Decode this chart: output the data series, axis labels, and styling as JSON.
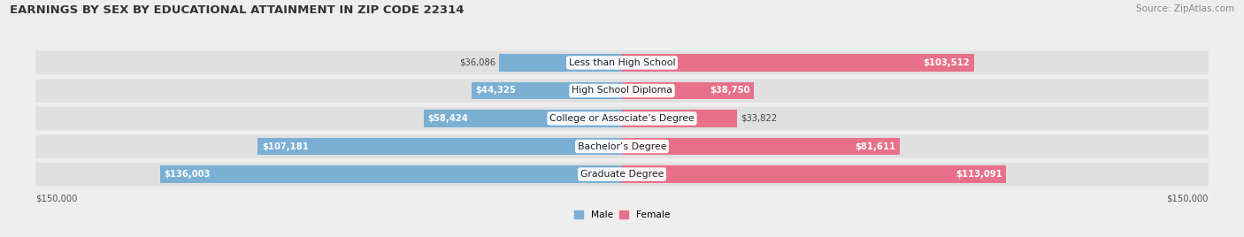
{
  "title": "EARNINGS BY SEX BY EDUCATIONAL ATTAINMENT IN ZIP CODE 22314",
  "source": "Source: ZipAtlas.com",
  "categories": [
    "Less than High School",
    "High School Diploma",
    "College or Associate’s Degree",
    "Bachelor’s Degree",
    "Graduate Degree"
  ],
  "male_values": [
    36086,
    44325,
    58424,
    107181,
    136003
  ],
  "female_values": [
    103512,
    38750,
    33822,
    81611,
    113091
  ],
  "male_color": "#7BAFD4",
  "female_color": "#E8708A",
  "max_val": 150000,
  "bg_color": "#eeeeee",
  "row_bg_color": "#e0e0e0",
  "title_fontsize": 9.5,
  "source_fontsize": 7.5,
  "label_fontsize": 7.2,
  "category_fontsize": 7.8,
  "axis_label": "$150,000",
  "legend_male": "Male",
  "legend_female": "Female"
}
